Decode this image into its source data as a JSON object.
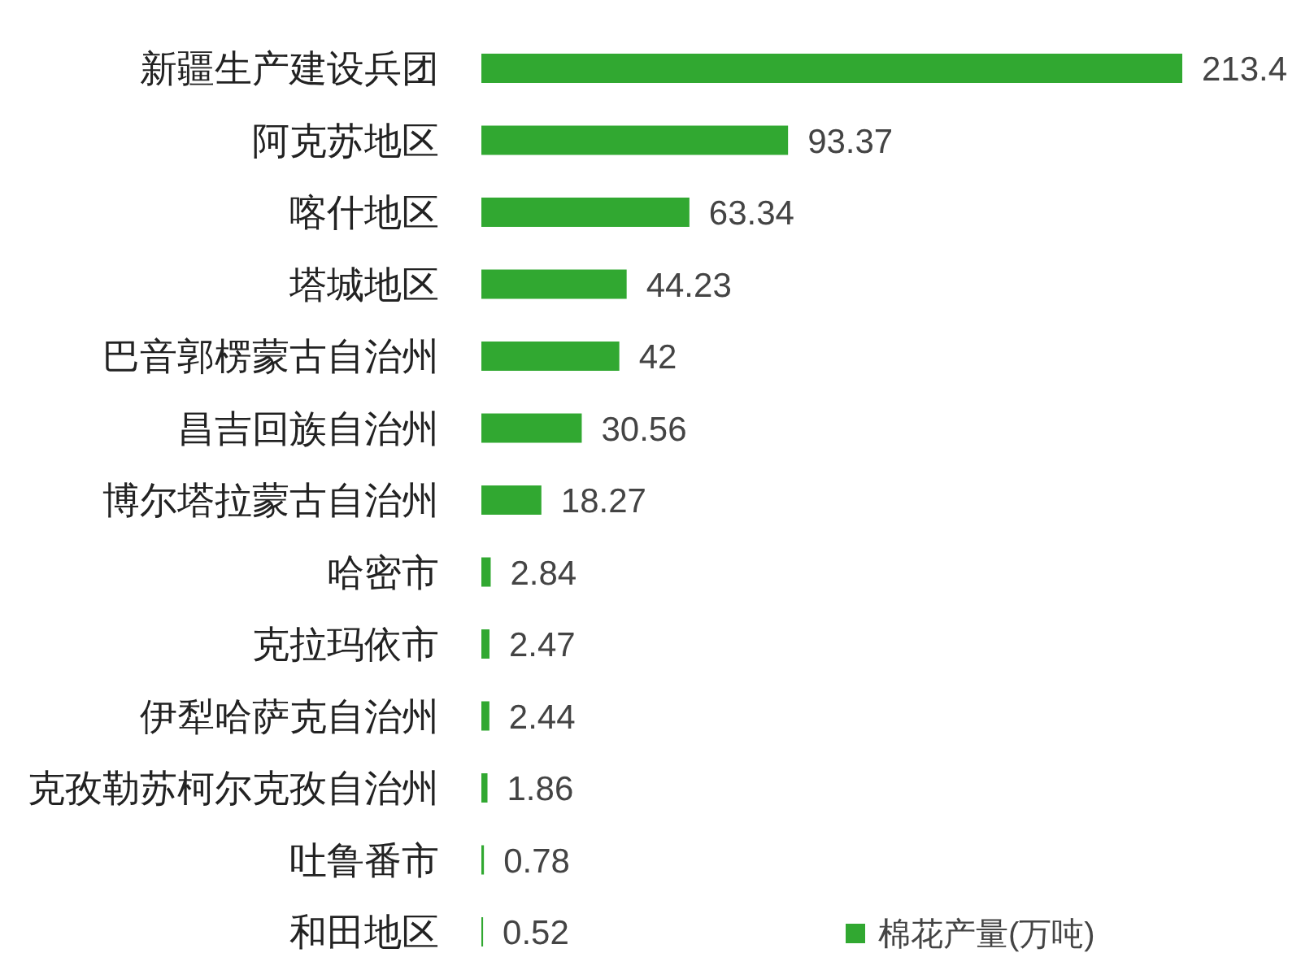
{
  "chart_data": {
    "type": "bar",
    "orientation": "horizontal",
    "categories": [
      "新疆生产建设兵团",
      "阿克苏地区",
      "喀什地区",
      "塔城地区",
      "巴音郭楞蒙古自治州",
      "昌吉回族自治州",
      "博尔塔拉蒙古自治州",
      "哈密市",
      "克拉玛依市",
      "伊犁哈萨克自治州",
      "克孜勒苏柯尔克孜自治州",
      "吐鲁番市",
      "和田地区"
    ],
    "series": [
      {
        "name": "棉花产量(万吨)",
        "color": "#31a831",
        "values": [
          213.4,
          93.37,
          63.34,
          44.23,
          42,
          30.56,
          18.27,
          2.84,
          2.47,
          2.44,
          1.86,
          0.78,
          0.52
        ]
      }
    ],
    "data_labels": true,
    "legend": "bottom right"
  }
}
